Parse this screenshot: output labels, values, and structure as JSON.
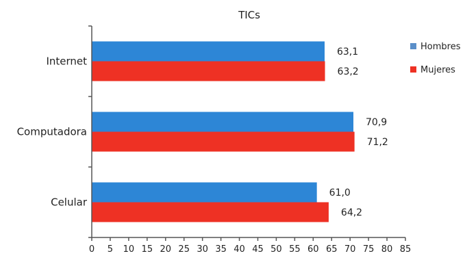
{
  "chart_data": {
    "type": "bar",
    "orientation": "horizontal",
    "title": "TICs",
    "categories": [
      "Internet",
      "Computadora",
      "Celular"
    ],
    "series": [
      {
        "name": "Hombres",
        "color": "#2D86D6",
        "values": [
          63.1,
          70.9,
          61.0
        ],
        "labels": [
          "63,1",
          "70,9",
          "61,0"
        ]
      },
      {
        "name": "Mujeres",
        "color": "#EE3124",
        "values": [
          63.2,
          71.2,
          64.2
        ],
        "labels": [
          "63,2",
          "71,2",
          "64,2"
        ]
      }
    ],
    "xlim": [
      0,
      85
    ],
    "xticks": [
      "0",
      "5",
      "10",
      "15",
      "20",
      "25",
      "30",
      "35",
      "40",
      "45",
      "50",
      "55",
      "60",
      "65",
      "70",
      "75",
      "80",
      "85"
    ],
    "legend_position": "top-right",
    "legend_marker_colors": [
      "#5B8FC9",
      "#EE3124"
    ],
    "grid": false
  }
}
